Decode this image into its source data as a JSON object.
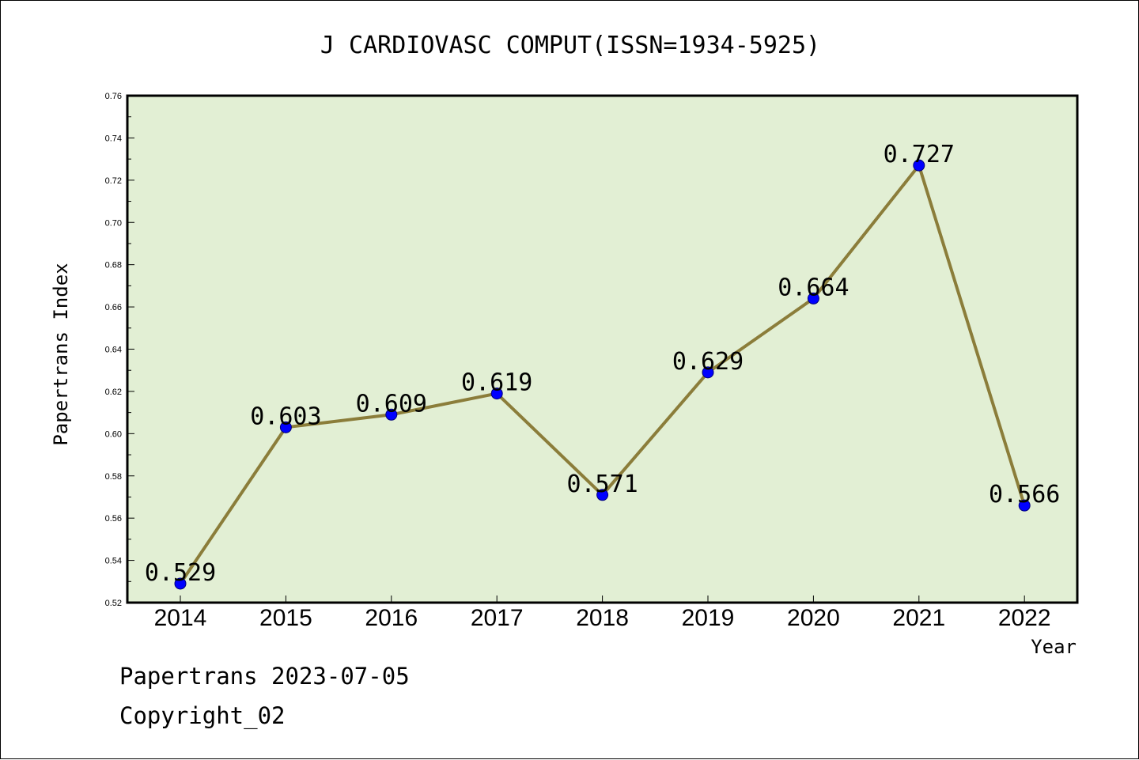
{
  "footer": {
    "line1": "Papertrans 2023-07-05",
    "line2": "Copyright_02"
  },
  "colors": {
    "plot_background": "#e2efd4",
    "line": "#8b7d3a",
    "marker": "#0000ff"
  },
  "chart_data": {
    "type": "line",
    "title": "J CARDIOVASC COMPUT(ISSN=1934-5925)",
    "xlabel": "Year",
    "ylabel": "Papertrans Index",
    "categories": [
      "2014",
      "2015",
      "2016",
      "2017",
      "2018",
      "2019",
      "2020",
      "2021",
      "2022"
    ],
    "series": [
      {
        "values": [
          0.529,
          0.603,
          0.609,
          0.619,
          0.571,
          0.629,
          0.664,
          0.727,
          0.566
        ],
        "data_labels": [
          "0.529",
          "0.603",
          "0.609",
          "0.619",
          "0.571",
          "0.629",
          "0.664",
          "0.727",
          "0.566"
        ]
      }
    ],
    "ylim": [
      0.52,
      0.76
    ],
    "yticks": [
      "0.52",
      "0.54",
      "0.56",
      "0.58",
      "0.60",
      "0.62",
      "0.64",
      "0.66",
      "0.68",
      "0.70",
      "0.72",
      "0.74",
      "0.76"
    ],
    "grid": false,
    "legend": "none"
  }
}
